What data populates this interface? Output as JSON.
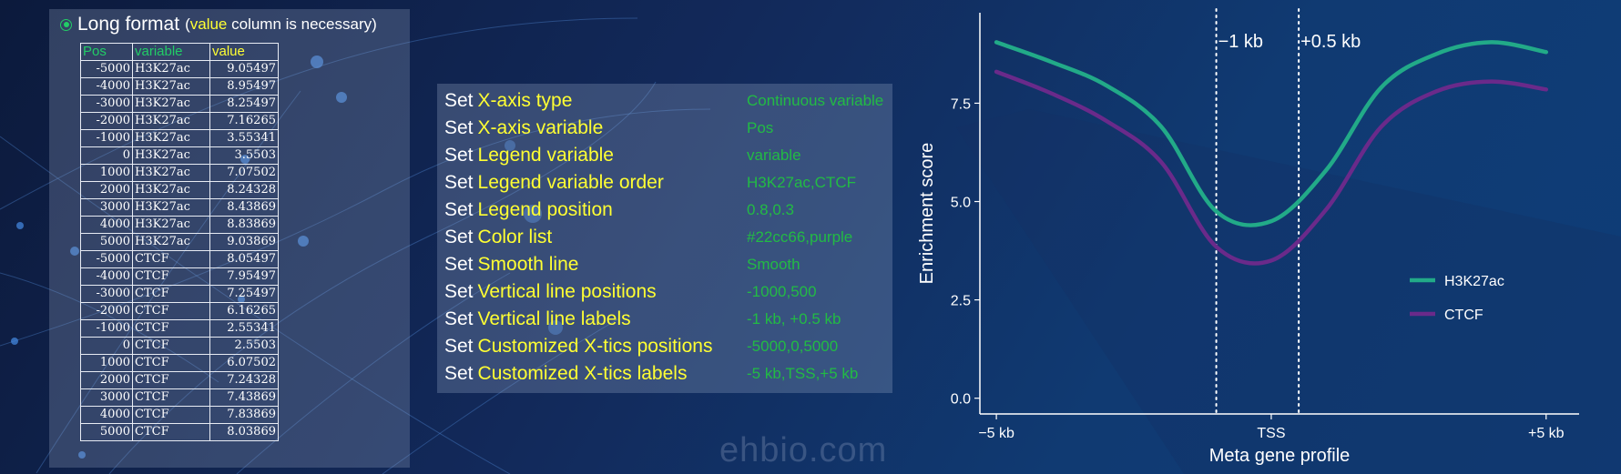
{
  "watermark": "ehbio.com",
  "colors": {
    "green": "#22cc66",
    "yellow": "#ffff33",
    "series1": "#22aa88",
    "series2": "#6a2a8a"
  },
  "table_panel": {
    "title": "Long format",
    "subtitle_open": "(",
    "subtitle_highlight": "value",
    "subtitle_rest": " column is necessary)",
    "headers": [
      "Pos",
      "variable",
      "value"
    ],
    "rows": [
      [
        "-5000",
        "H3K27ac",
        "9.05497"
      ],
      [
        "-4000",
        "H3K27ac",
        "8.95497"
      ],
      [
        "-3000",
        "H3K27ac",
        "8.25497"
      ],
      [
        "-2000",
        "H3K27ac",
        "7.16265"
      ],
      [
        "-1000",
        "H3K27ac",
        "3.55341"
      ],
      [
        "0",
        "H3K27ac",
        "3.5503"
      ],
      [
        "1000",
        "H3K27ac",
        "7.07502"
      ],
      [
        "2000",
        "H3K27ac",
        "8.24328"
      ],
      [
        "3000",
        "H3K27ac",
        "8.43869"
      ],
      [
        "4000",
        "H3K27ac",
        "8.83869"
      ],
      [
        "5000",
        "H3K27ac",
        "9.03869"
      ],
      [
        "-5000",
        "CTCF",
        "8.05497"
      ],
      [
        "-4000",
        "CTCF",
        "7.95497"
      ],
      [
        "-3000",
        "CTCF",
        "7.25497"
      ],
      [
        "-2000",
        "CTCF",
        "6.16265"
      ],
      [
        "-1000",
        "CTCF",
        "2.55341"
      ],
      [
        "0",
        "CTCF",
        "2.5503"
      ],
      [
        "1000",
        "CTCF",
        "6.07502"
      ],
      [
        "2000",
        "CTCF",
        "7.24328"
      ],
      [
        "3000",
        "CTCF",
        "7.43869"
      ],
      [
        "4000",
        "CTCF",
        "7.83869"
      ],
      [
        "5000",
        "CTCF",
        "8.03869"
      ]
    ]
  },
  "settings": [
    {
      "set": "Set",
      "name": "X-axis type",
      "value": "Continuous variable"
    },
    {
      "set": "Set",
      "name": "X-axis variable",
      "value": "Pos"
    },
    {
      "set": "Set",
      "name": "Legend variable",
      "value": "variable"
    },
    {
      "set": "Set",
      "name": "Legend variable order",
      "value": "H3K27ac,CTCF"
    },
    {
      "set": "Set",
      "name": "Legend position",
      "value": "0.8,0.3"
    },
    {
      "set": "Set",
      "name": "Color list",
      "value": "#22cc66,purple"
    },
    {
      "set": "Set",
      "name": "Smooth line",
      "value": "Smooth"
    },
    {
      "set": "Set",
      "name": "Vertical line positions",
      "value": "-1000,500"
    },
    {
      "set": "Set",
      "name": "Vertical line labels",
      "value": "-1 kb, +0.5 kb"
    },
    {
      "set": "Set",
      "name": "Customized X-tics positions",
      "value": "-5000,0,5000"
    },
    {
      "set": "Set",
      "name": "Customized X-tics labels",
      "value": "-5 kb,TSS,+5 kb"
    }
  ],
  "chart_data": {
    "type": "line",
    "smooth": true,
    "xlabel": "Meta gene profile",
    "ylabel": "Enrichment score",
    "xlim": [
      -5300,
      5600
    ],
    "ylim": [
      -0.4,
      9.8
    ],
    "x_ticks": [
      -5000,
      0,
      5000
    ],
    "x_tick_labels": [
      "−5 kb",
      "TSS",
      "+5 kb"
    ],
    "y_ticks": [
      0,
      2.5,
      5,
      7.5
    ],
    "y_tick_labels": [
      "0.0",
      "2.5",
      "5.0",
      "7.5"
    ],
    "vlines": [
      {
        "x": -1000,
        "label": "−1 kb"
      },
      {
        "x": 500,
        "label": "+0.5 kb"
      }
    ],
    "legend_position": "right",
    "series": [
      {
        "name": "H3K27ac",
        "color": "#22aa88",
        "x": [
          -5000,
          -4000,
          -3000,
          -2000,
          -1000,
          0,
          1000,
          2000,
          3000,
          4000,
          5000
        ],
        "y": [
          9.05,
          8.55,
          7.95,
          6.9,
          4.75,
          4.5,
          5.8,
          7.9,
          8.75,
          9.05,
          8.8
        ]
      },
      {
        "name": "CTCF",
        "color": "#6a2a8a",
        "x": [
          -5000,
          -4000,
          -3000,
          -2000,
          -1000,
          0,
          1000,
          2000,
          3000,
          4000,
          5000
        ],
        "y": [
          8.3,
          7.75,
          7.05,
          6.0,
          3.85,
          3.5,
          4.8,
          6.9,
          7.8,
          8.05,
          7.85
        ]
      }
    ]
  }
}
